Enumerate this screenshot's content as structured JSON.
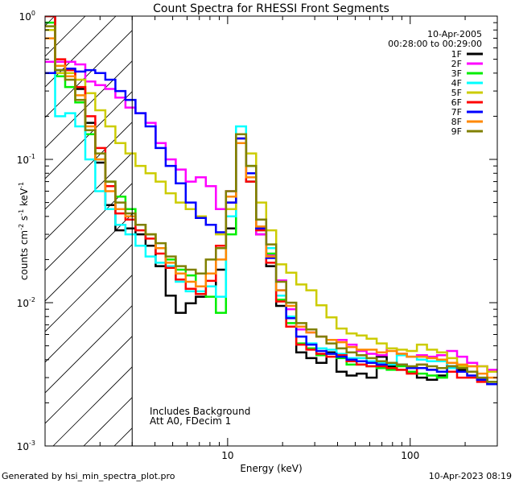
{
  "chart_data": {
    "type": "line",
    "title": "Count Spectra for RHESSI Front Segments",
    "xlabel": "Energy (keV)",
    "ylabel_parts": [
      "counts cm",
      "-2",
      " s",
      "-1",
      " keV",
      "-1"
    ],
    "xscale": "log",
    "yscale": "log",
    "xlim": [
      1,
      300
    ],
    "ylim": [
      0.001,
      1
    ],
    "x_ticks": [
      {
        "value": 10,
        "label": "10"
      },
      {
        "value": 100,
        "label": "100"
      }
    ],
    "y_ticks": [
      {
        "value": 0.001,
        "label": "10",
        "exp": "-3"
      },
      {
        "value": 0.01,
        "label": "10",
        "exp": "-2"
      },
      {
        "value": 0.1,
        "label": "10",
        "exp": "-1"
      },
      {
        "value": 1,
        "label": "10",
        "exp": "0"
      }
    ],
    "date_label": "10-Apr-2005",
    "time_range_label": "00:28:00 to 00:29:00",
    "annotations": [
      "Includes Background",
      "Att A0, FDecim 1"
    ],
    "hatched_region_xmax": 3,
    "series": [
      {
        "name": "1F",
        "color": "#000000",
        "values": [
          1.0,
          0.42,
          0.38,
          0.31,
          0.18,
          0.095,
          0.048,
          0.032,
          0.033,
          0.03,
          0.025,
          0.018,
          0.0112,
          0.0085,
          0.0099,
          0.011,
          0.013,
          0.017,
          0.033,
          0.13,
          0.07,
          0.03,
          0.018,
          0.0095,
          0.0068,
          0.0045,
          0.0041,
          0.0038,
          0.0045,
          0.0033,
          0.0031,
          0.0032,
          0.003,
          0.0042,
          0.0036,
          0.0034,
          0.0033,
          0.003,
          0.0029,
          0.0031,
          0.0038,
          0.0034,
          0.0033,
          0.0029,
          0.0028
        ]
      },
      {
        "name": "2F",
        "color": "#ff00ff",
        "values": [
          0.48,
          0.48,
          0.48,
          0.46,
          0.35,
          0.33,
          0.31,
          0.27,
          0.23,
          0.21,
          0.18,
          0.13,
          0.1,
          0.085,
          0.07,
          0.075,
          0.065,
          0.045,
          0.06,
          0.13,
          0.075,
          0.03,
          0.0215,
          0.0143,
          0.009,
          0.0065,
          0.0062,
          0.0058,
          0.0055,
          0.0055,
          0.0051,
          0.0046,
          0.0044,
          0.0043,
          0.0048,
          0.0044,
          0.0042,
          0.0043,
          0.0042,
          0.0043,
          0.0046,
          0.0042,
          0.0038,
          0.0036,
          0.0034
        ]
      },
      {
        "name": "3F",
        "color": "#00ee00",
        "values": [
          0.9,
          0.38,
          0.32,
          0.25,
          0.15,
          0.1,
          0.07,
          0.055,
          0.045,
          0.035,
          0.03,
          0.024,
          0.02,
          0.017,
          0.0155,
          0.013,
          0.011,
          0.0085,
          0.03,
          0.15,
          0.09,
          0.038,
          0.022,
          0.0105,
          0.0072,
          0.0052,
          0.0048,
          0.0043,
          0.0044,
          0.0041,
          0.0037,
          0.0037,
          0.0036,
          0.0035,
          0.0034,
          0.0036,
          0.0033,
          0.0032,
          0.0031,
          0.003,
          0.0036,
          0.0035,
          0.0033,
          0.0029,
          0.0027
        ]
      },
      {
        "name": "4F",
        "color": "#00ffff",
        "values": [
          0.8,
          0.2,
          0.21,
          0.17,
          0.1,
          0.06,
          0.045,
          0.035,
          0.03,
          0.025,
          0.021,
          0.019,
          0.018,
          0.014,
          0.012,
          0.012,
          0.013,
          0.011,
          0.04,
          0.17,
          0.07,
          0.032,
          0.024,
          0.0112,
          0.008,
          0.0058,
          0.0052,
          0.0048,
          0.0047,
          0.0044,
          0.0041,
          0.0041,
          0.0039,
          0.0038,
          0.0037,
          0.0043,
          0.0042,
          0.004,
          0.0039,
          0.0039,
          0.0035,
          0.0036,
          0.0033,
          0.003,
          0.0028
        ]
      },
      {
        "name": "5F",
        "color": "#cccc00",
        "values": [
          0.8,
          0.4,
          0.4,
          0.36,
          0.29,
          0.22,
          0.17,
          0.13,
          0.11,
          0.09,
          0.08,
          0.07,
          0.058,
          0.05,
          0.045,
          0.04,
          0.035,
          0.03,
          0.045,
          0.14,
          0.11,
          0.05,
          0.032,
          0.0185,
          0.0162,
          0.0134,
          0.0122,
          0.0096,
          0.0079,
          0.0066,
          0.0061,
          0.0059,
          0.0056,
          0.0052,
          0.0048,
          0.0047,
          0.0046,
          0.0051,
          0.0047,
          0.0045,
          0.0041,
          0.0036,
          0.0036,
          0.0036,
          0.0033
        ]
      },
      {
        "name": "6F",
        "color": "#ff0000",
        "values": [
          1.0,
          0.5,
          0.42,
          0.32,
          0.2,
          0.12,
          0.065,
          0.042,
          0.038,
          0.032,
          0.028,
          0.022,
          0.0175,
          0.0145,
          0.0125,
          0.0115,
          0.0142,
          0.025,
          0.05,
          0.14,
          0.07,
          0.032,
          0.019,
          0.0102,
          0.0068,
          0.0051,
          0.0047,
          0.0044,
          0.0042,
          0.0043,
          0.0039,
          0.0037,
          0.0036,
          0.0036,
          0.0035,
          0.0034,
          0.0032,
          0.0037,
          0.0034,
          0.0033,
          0.0033,
          0.003,
          0.003,
          0.0028,
          0.0027
        ]
      },
      {
        "name": "7F",
        "color": "#0000ff",
        "values": [
          0.4,
          0.42,
          0.43,
          0.41,
          0.42,
          0.4,
          0.36,
          0.3,
          0.26,
          0.21,
          0.17,
          0.12,
          0.09,
          0.068,
          0.05,
          0.039,
          0.035,
          0.031,
          0.05,
          0.14,
          0.08,
          0.033,
          0.0205,
          0.0122,
          0.0078,
          0.0058,
          0.0051,
          0.0046,
          0.0044,
          0.0042,
          0.004,
          0.0039,
          0.0038,
          0.0037,
          0.0038,
          0.0037,
          0.0035,
          0.0035,
          0.0034,
          0.0033,
          0.0036,
          0.0033,
          0.0031,
          0.0029,
          0.0027
        ]
      },
      {
        "name": "8F",
        "color": "#ff8800",
        "values": [
          0.7,
          0.45,
          0.38,
          0.28,
          0.17,
          0.1,
          0.06,
          0.045,
          0.04,
          0.035,
          0.03,
          0.024,
          0.019,
          0.016,
          0.014,
          0.013,
          0.016,
          0.02,
          0.055,
          0.13,
          0.075,
          0.034,
          0.021,
          0.0122,
          0.0095,
          0.0068,
          0.0062,
          0.0058,
          0.0055,
          0.0053,
          0.0049,
          0.0047,
          0.0047,
          0.0045,
          0.0046,
          0.0044,
          0.0042,
          0.0042,
          0.0041,
          0.004,
          0.0038,
          0.0037,
          0.0036,
          0.0032,
          0.003
        ]
      },
      {
        "name": "9F",
        "color": "#808000",
        "values": [
          0.85,
          0.42,
          0.36,
          0.26,
          0.16,
          0.11,
          0.07,
          0.05,
          0.042,
          0.035,
          0.03,
          0.026,
          0.021,
          0.018,
          0.017,
          0.016,
          0.02,
          0.024,
          0.06,
          0.15,
          0.09,
          0.038,
          0.0255,
          0.014,
          0.01,
          0.0072,
          0.0065,
          0.0058,
          0.0052,
          0.0048,
          0.0045,
          0.0043,
          0.0041,
          0.0039,
          0.0038,
          0.0037,
          0.0036,
          0.0037,
          0.0036,
          0.0035,
          0.0036,
          0.0035,
          0.0033,
          0.003,
          0.0028
        ]
      }
    ]
  },
  "footer": {
    "generated_by": "Generated by hsi_min_spectra_plot.pro",
    "timestamp": "10-Apr-2023 08:19"
  }
}
